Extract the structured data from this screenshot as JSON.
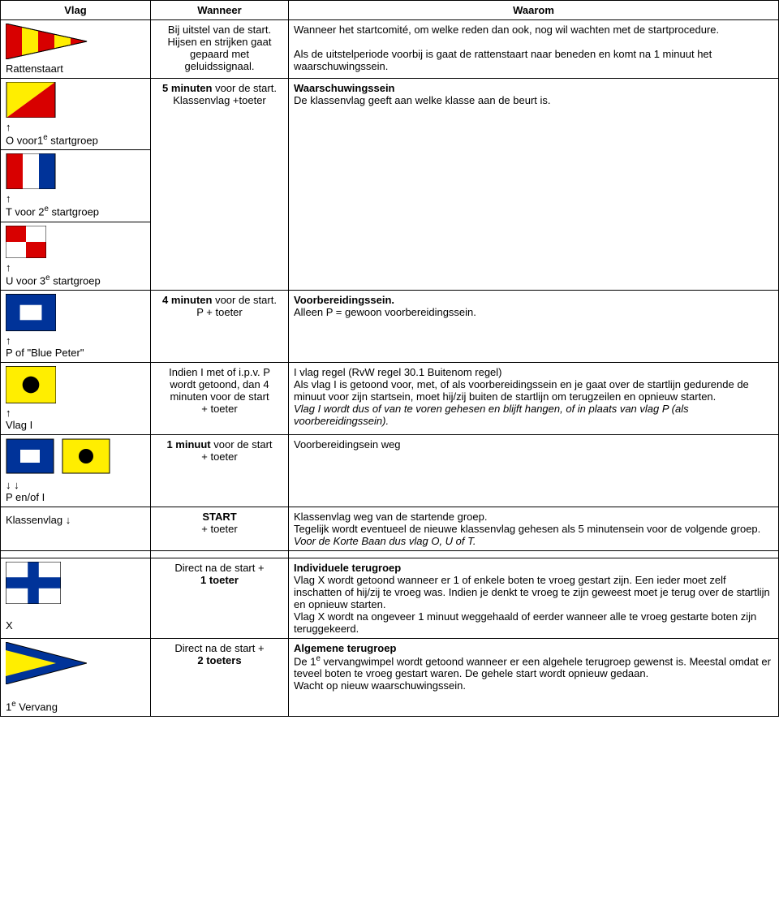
{
  "headers": {
    "flag": "Vlag",
    "when": "Wanneer",
    "why": "Waarom"
  },
  "colors": {
    "yellow": "#ffee00",
    "red": "#d80000",
    "blue": "#003399",
    "white": "#ffffff",
    "black": "#000000",
    "border": "#000000"
  },
  "rows": {
    "rattenstaart": {
      "label": "Rattenstaart",
      "when_html": "Bij uitstel van de start.<br>Hijsen en strijken gaat gepaard met geluidssignaal.",
      "why_html": "Wanneer het startcomité, om welke reden dan ook, nog wil wachten met de startprocedure.<br><br>Als de uitstelperiode voorbij is gaat de rattenstaart naar beneden en komt na 1 minuut het waarschuwingssein."
    },
    "o_group": {
      "label_html": "            ↑<br>O voor1<sup>e</sup> startgroep",
      "when_html": "<span class=\"bold\">5 minuten</span> voor de start.<br>Klassenvlag +toeter",
      "why_html": "<span class=\"bold\">Waarschuwingssein</span><br>De klassenvlag geeft aan welke klasse aan de beurt is."
    },
    "t_group": {
      "label_html": "            ↑<br>T voor 2<sup>e</sup> startgroep"
    },
    "u_group": {
      "label_html": "            ↑<br>U voor 3<sup>e</sup> startgroep"
    },
    "p_blue_peter": {
      "label_html": "            ↑<br>P of \"Blue Peter\"",
      "when_html": "<span class=\"bold\">4 minuten</span> voor de start.<br>P + toeter",
      "why_html": "<span class=\"bold\">Voorbereidingssein.</span><br>Alleen P = gewoon voorbereidingssein."
    },
    "vlag_i": {
      "label_html": "                    ↑<br>Vlag I",
      "when_html": "Indien I met of i.p.v. P wordt getoond, dan 4 minuten voor de start<br>+ toeter",
      "why_html": "I vlag regel (RvW regel 30.1 Buitenom regel)<br>Als vlag I is getoond voor, met, of als voorbereidingssein en je gaat over de startlijn gedurende de minuut voor zijn startsein, moet hij/zij buiten de startlijn om terugzeilen en opnieuw starten.<br><span class=\"italic\">Vlag I wordt dus of van te voren gehesen en blijft hangen, of in plaats van vlag P (als voorbereidingssein).</span>"
    },
    "p_en_i": {
      "label_html": "            ↓           ↓<br>P en/of I",
      "when_html": "<span class=\"bold\">1 minuut</span> voor de start<br>+ toeter",
      "why_html": "Voorbereidingsein weg"
    },
    "klassenvlag": {
      "label_html": "Klassenvlag ↓",
      "when_html": "<span class=\"bold\">START</span><br>+ toeter",
      "why_html": "Klassenvlag weg van de startende groep.<br>Tegelijk wordt eventueel de nieuwe klassenvlag gehesen als 5 minutensein voor de volgende groep.<br><span class=\"italic\">Voor de Korte Baan dus vlag O, U of T.</span>"
    },
    "x_flag": {
      "label_html": "<br>X",
      "when_html": "Direct na de start +<br><span class=\"bold\">1 toeter</span>",
      "why_html": "<span class=\"bold\">Individuele terugroep</span><br>Vlag X wordt getoond wanneer er 1 of enkele boten te vroeg gestart zijn. Een ieder moet zelf inschatten of hij/zij te vroeg was. Indien je denkt te vroeg te zijn geweest moet je terug over de startlijn en opnieuw starten.<br>Vlag X wordt na ongeveer 1 minuut weggehaald of eerder wanneer alle te vroeg gestarte boten zijn teruggekeerd."
    },
    "vervang": {
      "label_html": "<br>1<sup>e</sup> Vervang",
      "when_html": "Direct na de start +<br><span class=\"bold\">2 toeters</span>",
      "why_html": "<span class=\"bold\">Algemene terugroep</span><br>De 1<sup>e</sup> vervangwimpel wordt getoond wanneer er een algehele terugroep gewenst is. Meestal omdat er teveel boten te vroeg gestart waren. De gehele start wordt opnieuw gedaan.<br>Wacht op nieuw waarschuwingssein."
    }
  }
}
